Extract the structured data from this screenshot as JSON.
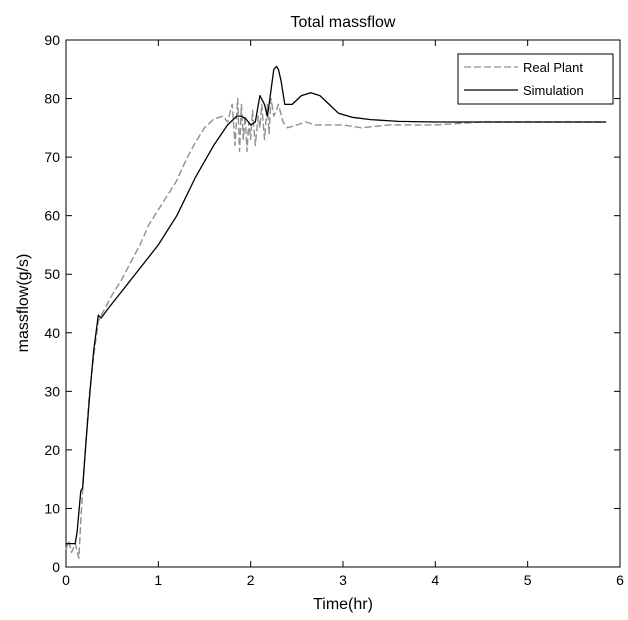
{
  "chart_data": {
    "type": "line",
    "title": "Total massflow",
    "xlabel": "Time(hr)",
    "ylabel": "massflow(g/s)",
    "xlim": [
      0,
      6
    ],
    "ylim": [
      0,
      90
    ],
    "xticks": [
      0,
      1,
      2,
      3,
      4,
      5,
      6
    ],
    "yticks": [
      0,
      10,
      20,
      30,
      40,
      50,
      60,
      70,
      80,
      90
    ],
    "grid": false,
    "legend_position": "top-right",
    "series": [
      {
        "name": "Real Plant",
        "color": "#909090",
        "style": "dashed",
        "x": [
          0,
          0.03,
          0.06,
          0.1,
          0.14,
          0.16,
          0.2,
          0.25,
          0.3,
          0.35,
          0.4,
          0.5,
          0.6,
          0.7,
          0.8,
          0.9,
          1.0,
          1.1,
          1.2,
          1.3,
          1.4,
          1.5,
          1.6,
          1.7,
          1.75,
          1.8,
          1.83,
          1.86,
          1.88,
          1.9,
          1.92,
          1.94,
          1.96,
          1.98,
          2.0,
          2.02,
          2.05,
          2.08,
          2.1,
          2.12,
          2.15,
          2.18,
          2.2,
          2.22,
          2.25,
          2.28,
          2.3,
          2.35,
          2.4,
          2.5,
          2.6,
          2.7,
          2.8,
          3.0,
          3.2,
          3.5,
          4.0,
          4.5,
          5.0,
          5.3,
          5.6,
          5.85
        ],
        "y": [
          3,
          4.5,
          2.5,
          4,
          1.5,
          8,
          18,
          29,
          36,
          42,
          43.5,
          46.5,
          49,
          52,
          55,
          58.5,
          61,
          63.5,
          66,
          69.5,
          72.5,
          75,
          76.5,
          77,
          76,
          79,
          72,
          80,
          71,
          79,
          73,
          77,
          71,
          76,
          73,
          78,
          72,
          77,
          75,
          79,
          73,
          79,
          74,
          80,
          77,
          78,
          79,
          76,
          75,
          75.5,
          76,
          75.5,
          75.5,
          75.5,
          75,
          75.5,
          75.5,
          76,
          76,
          76,
          76,
          76
        ]
      },
      {
        "name": "Simulation",
        "color": "#000000",
        "style": "solid",
        "x": [
          0,
          0.1,
          0.12,
          0.16,
          0.18,
          0.22,
          0.26,
          0.3,
          0.35,
          0.38,
          0.45,
          0.55,
          0.7,
          0.85,
          1.0,
          1.2,
          1.4,
          1.6,
          1.75,
          1.85,
          1.9,
          1.95,
          2.0,
          2.05,
          2.1,
          2.15,
          2.18,
          2.2,
          2.25,
          2.28,
          2.3,
          2.33,
          2.37,
          2.45,
          2.55,
          2.65,
          2.75,
          2.85,
          2.95,
          3.1,
          3.3,
          3.6,
          4.0,
          4.5,
          5.0,
          5.5,
          5.85
        ],
        "y": [
          4,
          4,
          6,
          13,
          13.5,
          22,
          30,
          37,
          43,
          42.5,
          44,
          46,
          49,
          52,
          55,
          60,
          66.5,
          72,
          75.5,
          77,
          77,
          76.5,
          75.5,
          76,
          80.5,
          79,
          77,
          79,
          85,
          85.5,
          85,
          83,
          79,
          79,
          80.5,
          81,
          80.5,
          79,
          77.5,
          76.8,
          76.4,
          76.1,
          76,
          76,
          76,
          76,
          76
        ]
      }
    ]
  }
}
